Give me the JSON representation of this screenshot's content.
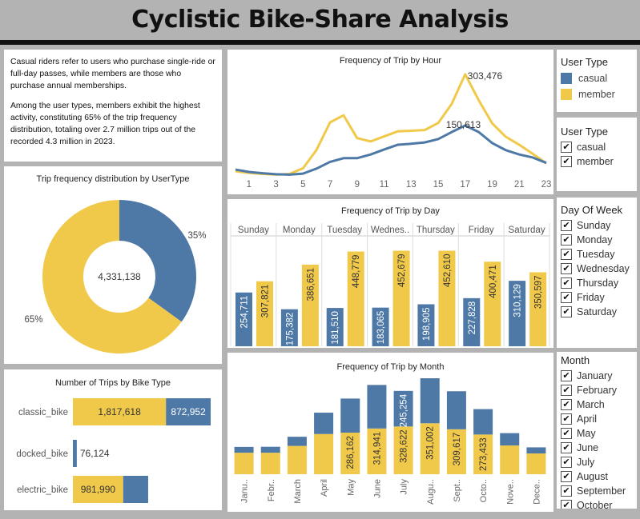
{
  "title": "Cyclistic Bike-Share Analysis",
  "colors": {
    "casual": "#4e79a7",
    "member": "#f1c94a"
  },
  "intro": {
    "p1": "Casual riders refer to users who purchase single-ride or full-day passes, while members are those who purchase annual memberships.",
    "p2": "Among the user types, members exhibit the highest activity, constituting 65% of the trip frequency distribution, totaling over 2.7 million trips out of the recorded 4.3 million in 2023."
  },
  "legend": {
    "title": "User Type",
    "items": [
      "casual",
      "member"
    ]
  },
  "filter_user": {
    "title": "User Type",
    "items": [
      "casual",
      "member"
    ]
  },
  "filter_day": {
    "title": "Day Of Week",
    "items": [
      "Sunday",
      "Monday",
      "Tuesday",
      "Wednesday",
      "Thursday",
      "Friday",
      "Saturday"
    ]
  },
  "filter_month": {
    "title": "Month",
    "items": [
      "January",
      "February",
      "March",
      "April",
      "May",
      "June",
      "July",
      "August",
      "September",
      "October"
    ]
  },
  "chart_data": [
    {
      "id": "donut",
      "type": "pie",
      "title": "Trip frequency distribution by UserType",
      "center_label": "4,331,138",
      "slices": [
        {
          "name": "casual",
          "percent": 35,
          "label": "35%"
        },
        {
          "name": "member",
          "percent": 65,
          "label": "65%"
        }
      ]
    },
    {
      "id": "bike",
      "type": "bar",
      "orientation": "horizontal-stacked",
      "title": "Number of Trips by Bike Type",
      "categories": [
        "classic_bike",
        "docked_bike",
        "electric_bike"
      ],
      "series": [
        {
          "name": "member",
          "values": [
            1817618,
            0,
            981990
          ],
          "labels": [
            "1,817,618",
            "",
            "981,990"
          ]
        },
        {
          "name": "casual",
          "values": [
            872952,
            76124,
            488000
          ],
          "labels": [
            "872,952",
            "76,124",
            ""
          ]
        }
      ]
    },
    {
      "id": "hour",
      "type": "line",
      "title": "Frequency of Trip by Hour",
      "x": [
        0,
        1,
        2,
        3,
        4,
        5,
        6,
        7,
        8,
        9,
        10,
        11,
        12,
        13,
        14,
        15,
        16,
        17,
        18,
        19,
        20,
        21,
        22,
        23
      ],
      "xticks": [
        "1",
        "3",
        "5",
        "7",
        "9",
        "11",
        "13",
        "15",
        "17",
        "19",
        "21",
        "23"
      ],
      "ylim": [
        0,
        320000
      ],
      "series": [
        {
          "name": "member",
          "values": [
            14000,
            9000,
            6000,
            4000,
            6000,
            23000,
            78000,
            160000,
            181000,
            113000,
            103000,
            118000,
            133000,
            135000,
            137000,
            158000,
            215000,
            303476,
            226000,
            157000,
            117000,
            93000,
            66000,
            38000
          ]
        },
        {
          "name": "casual",
          "values": [
            19000,
            12000,
            8000,
            5000,
            4000,
            7000,
            22000,
            42000,
            53000,
            53000,
            64000,
            79000,
            93000,
            96000,
            100000,
            110000,
            131000,
            150613,
            131000,
            98000,
            77000,
            64000,
            55000,
            39000
          ]
        }
      ],
      "annotations": [
        "303,476",
        "150,613"
      ]
    },
    {
      "id": "day",
      "type": "bar",
      "title": "Frequency of Trip by Day",
      "categories": [
        "Sunday",
        "Monday",
        "Tuesday",
        "Wednes..",
        "Thursday",
        "Friday",
        "Saturday"
      ],
      "ylim": [
        0,
        500000
      ],
      "series": [
        {
          "name": "casual",
          "values": [
            254711,
            175382,
            181510,
            183065,
            198905,
            227828,
            310129
          ],
          "labels": [
            "254,711",
            "175,382",
            "181,510",
            "183,065",
            "198,905",
            "227,828",
            "310,129"
          ]
        },
        {
          "name": "member",
          "values": [
            307821,
            386651,
            448779,
            452679,
            452610,
            400471,
            350597
          ],
          "labels": [
            "307,821",
            "386,651",
            "448,779",
            "452,679",
            "452,610",
            "400,471",
            "350,597"
          ]
        }
      ]
    },
    {
      "id": "month",
      "type": "bar",
      "orientation": "vertical-stacked",
      "title": "Frequency of Trip by Month",
      "categories": [
        "Janu..",
        "Febr..",
        "March",
        "April",
        "May",
        "June",
        "July",
        "Augu..",
        "Sept..",
        "Octo..",
        "Nove..",
        "Dece.."
      ],
      "ylim": [
        0,
        650000
      ],
      "series": [
        {
          "name": "member",
          "values": [
            148000,
            148000,
            195000,
            277000,
            286162,
            314941,
            328622,
            351002,
            309617,
            273433,
            198000,
            143000
          ],
          "labels": [
            "",
            "",
            "",
            "",
            "286,162",
            "314,941",
            "328,622",
            "351,002",
            "309,617",
            "273,433",
            "",
            ""
          ]
        },
        {
          "name": "casual",
          "values": [
            40000,
            41000,
            63000,
            147000,
            235000,
            300000,
            245254,
            310000,
            262000,
            175000,
            85000,
            42000
          ],
          "labels": [
            "",
            "",
            "",
            "",
            "",
            "",
            "245,254",
            "",
            "",
            "",
            "",
            ""
          ]
        }
      ]
    }
  ]
}
